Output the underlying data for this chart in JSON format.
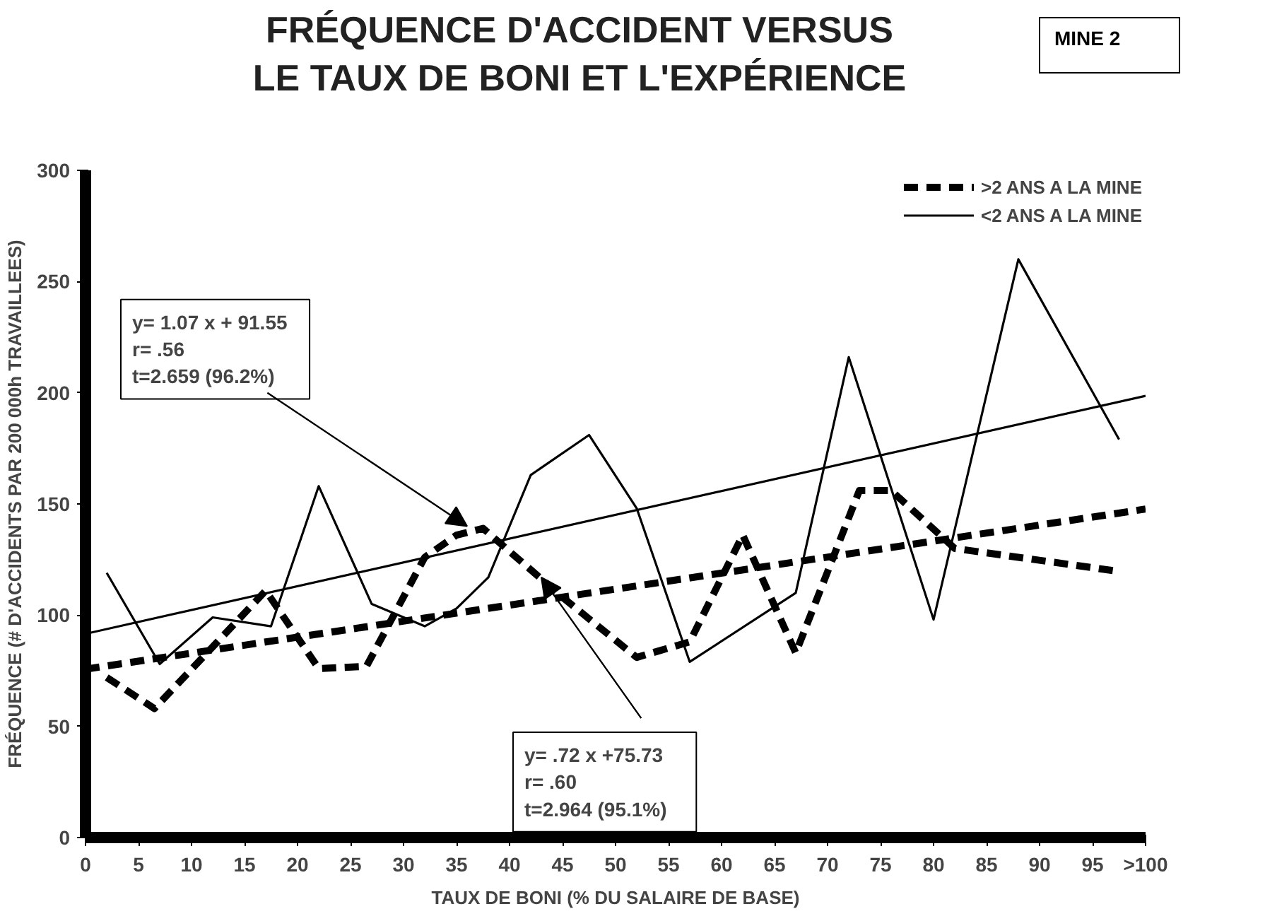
{
  "chart_data": {
    "type": "line",
    "title": "FRÉQUENCE D'ACCIDENT VERSUS\nLE TAUX DE BONI ET L'EXPÉRIENCE",
    "xlabel": "TAUX DE BONI (% DU SALAIRE DE BASE)",
    "ylabel": "FRÉQUENCE (# D'ACCIDENTS PAR 200 000h TRAVAILLEES)",
    "xlim": [
      0,
      100
    ],
    "ylim": [
      0,
      300
    ],
    "xticks": [
      0,
      5,
      10,
      15,
      20,
      25,
      30,
      35,
      40,
      45,
      50,
      55,
      60,
      65,
      70,
      75,
      80,
      85,
      90,
      95,
      {
        "value": 100,
        "label": ">100"
      }
    ],
    "yticks": [
      0,
      50,
      100,
      150,
      200,
      250,
      300
    ],
    "grid": false,
    "legend": "top right",
    "marker": "none",
    "series": [
      {
        "name": ">2 ANS A LA MINE",
        "color": "#000000",
        "line_style": "dashed",
        "x": [
          2,
          6.5,
          17,
          22,
          26.5,
          32,
          35,
          37.5,
          45,
          52,
          57,
          62,
          67,
          73,
          76,
          82,
          97
        ],
        "values": [
          72,
          58,
          111,
          76,
          77,
          126,
          136,
          139,
          108,
          81,
          88,
          136,
          83,
          156,
          156,
          130,
          120
        ]
      },
      {
        "name": "<2 ANS A LA MINE",
        "color": "#000000",
        "line_style": "solid",
        "x": [
          2,
          7,
          12,
          17.5,
          22,
          27,
          32,
          35,
          38,
          42,
          47.5,
          52,
          57,
          67,
          72,
          80,
          88,
          97.5
        ],
        "values": [
          119,
          78,
          99,
          95,
          158,
          105,
          95,
          103,
          117,
          163,
          181,
          148,
          79,
          110,
          216,
          98,
          260,
          179
        ]
      },
      {
        "color": "#000000",
        "line_style": "solid",
        "x": [
          0,
          100
        ],
        "values": [
          91.6,
          198.6
        ]
      },
      {
        "color": "#000000",
        "line_style": "dashed",
        "x": [
          0,
          100
        ],
        "values": [
          75.7,
          147.7
        ]
      }
    ],
    "annotations": [
      {
        "text": "y= 1.07  x  + 91.55\nr=  .56\nt=2.659 (96.2%)",
        "x": 36,
        "y": 140
      },
      {
        "text": "y=   .72  x  +75.73\nr=  .60\nt=2.964 (95.1%)",
        "x": 43,
        "y": 117
      },
      "MINE 2"
    ]
  }
}
